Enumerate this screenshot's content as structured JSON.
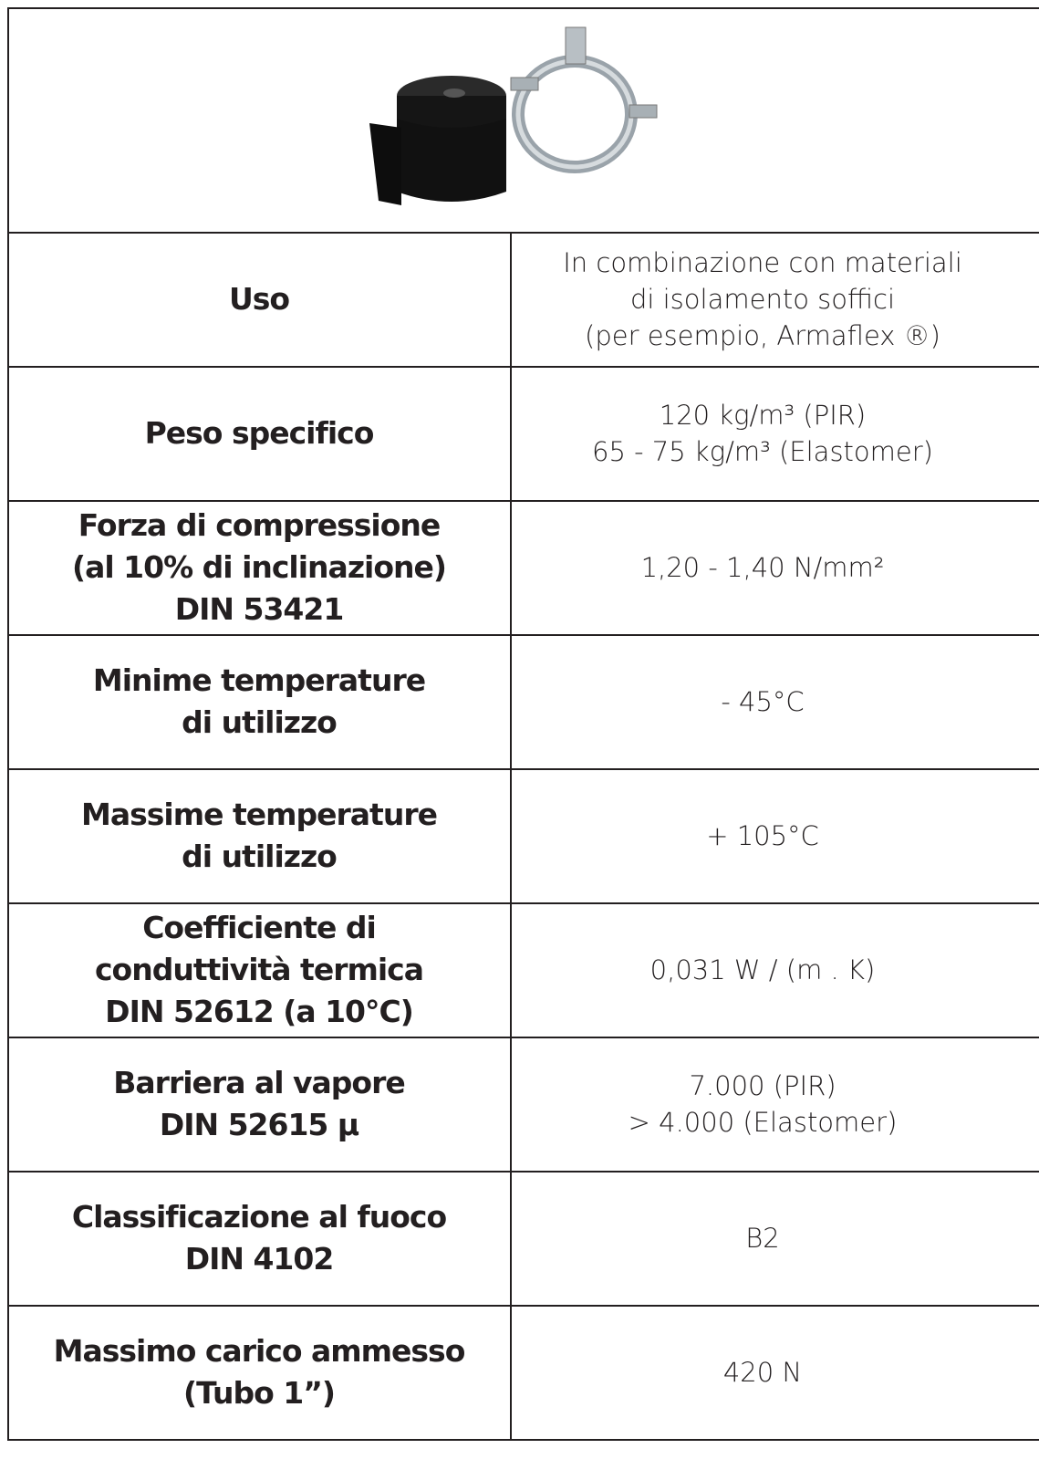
{
  "table": {
    "rows": [
      {
        "label": [
          "Uso"
        ],
        "value": [
          "In combinazione con materiali",
          "di isolamento soffici",
          "(per esempio, Armaflex ®)"
        ]
      },
      {
        "label": [
          "Peso specifico"
        ],
        "value": [
          "120 kg/m³ (PIR)",
          "65 - 75 kg/m³ (Elastomer)"
        ]
      },
      {
        "label": [
          "Forza di compressione",
          "(al 10% di inclinazione)",
          "DIN 53421"
        ],
        "value": [
          "1,20 - 1,40 N/mm²"
        ]
      },
      {
        "label": [
          "Minime temperature",
          "di utilizzo"
        ],
        "value": [
          "- 45°C"
        ]
      },
      {
        "label": [
          "Massime temperature",
          "di utilizzo"
        ],
        "value": [
          "+ 105°C"
        ]
      },
      {
        "label": [
          "Coefficiente di",
          "conduttività termica",
          "DIN 52612 (a 10°C)"
        ],
        "value": [
          "0,031 W / (m . K)"
        ]
      },
      {
        "label": [
          "Barriera al vapore",
          "DIN 52615 μ"
        ],
        "value": [
          "7.000 (PIR)",
          "> 4.000 (Elastomer)"
        ]
      },
      {
        "label": [
          "Classificazione al fuoco",
          "DIN 4102"
        ],
        "value": [
          "B2"
        ]
      },
      {
        "label": [
          "Massimo carico ammesso",
          "(Tubo 1”)"
        ],
        "value": [
          "420 N"
        ]
      }
    ]
  }
}
